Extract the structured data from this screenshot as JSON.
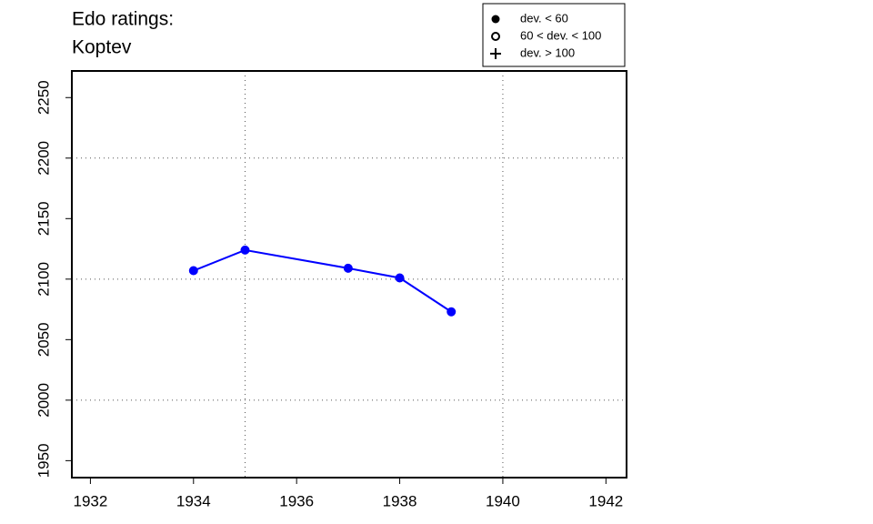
{
  "chart_data": {
    "type": "line",
    "title": "Edo ratings:",
    "subtitle": "Koptev",
    "x": [
      1934,
      1935,
      1937,
      1938,
      1939
    ],
    "series": [
      {
        "color": "#0000ff",
        "marker": "filled-circle",
        "values": [
          2107,
          2124,
          2109,
          2101,
          2073
        ]
      }
    ],
    "xlim": [
      1931.64,
      1942.4
    ],
    "xticks": [
      1932,
      1934,
      1936,
      1938,
      1940,
      1942
    ],
    "ylim": [
      1936,
      2272
    ],
    "yticks": [
      1950,
      2000,
      2050,
      2100,
      2150,
      2200,
      2250
    ],
    "grid_x": [
      1935,
      1940
    ],
    "grid_y": [
      2000,
      2100,
      2200
    ],
    "legend": {
      "position": "top-right",
      "items": [
        {
          "label": "dev. < 60",
          "marker": "filled-circle"
        },
        {
          "label": "60 < dev. < 100",
          "marker": "open-circle"
        },
        {
          "label": "dev. > 100",
          "marker": "plus"
        }
      ]
    }
  }
}
